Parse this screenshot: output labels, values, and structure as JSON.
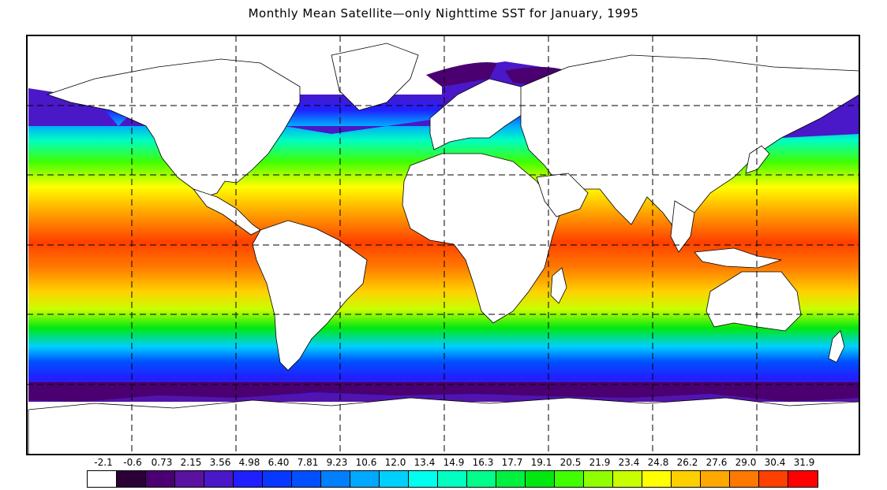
{
  "title": "Monthly Mean Satellite—only Nighttime SST for January, 1995",
  "map": {
    "projection": "equirectangular",
    "grid": "dashed",
    "land_color": "#ffffff",
    "coastline_color": "#000000"
  },
  "legend": {
    "labels": [
      "-2.1",
      "-0.6",
      "0.73",
      "2.15",
      "3.56",
      "4.98",
      "6.40",
      "7.81",
      "9.23",
      "10.6",
      "12.0",
      "13.4",
      "14.9",
      "16.3",
      "17.7",
      "19.1",
      "20.5",
      "21.9",
      "23.4",
      "24.8",
      "26.2",
      "27.6",
      "29.0",
      "30.4",
      "31.9"
    ],
    "colors": [
      "#ffffff",
      "#2a0036",
      "#4a0070",
      "#5a12a0",
      "#4a18c8",
      "#2020ff",
      "#0838ff",
      "#0050ff",
      "#0080ff",
      "#00a8ff",
      "#00d0ff",
      "#00ffee",
      "#00ffc0",
      "#00ff8a",
      "#00f040",
      "#00e810",
      "#40ff00",
      "#90ff00",
      "#c8ff00",
      "#ffff00",
      "#ffd000",
      "#ffa800",
      "#ff7800",
      "#ff4000",
      "#ff0000"
    ]
  }
}
